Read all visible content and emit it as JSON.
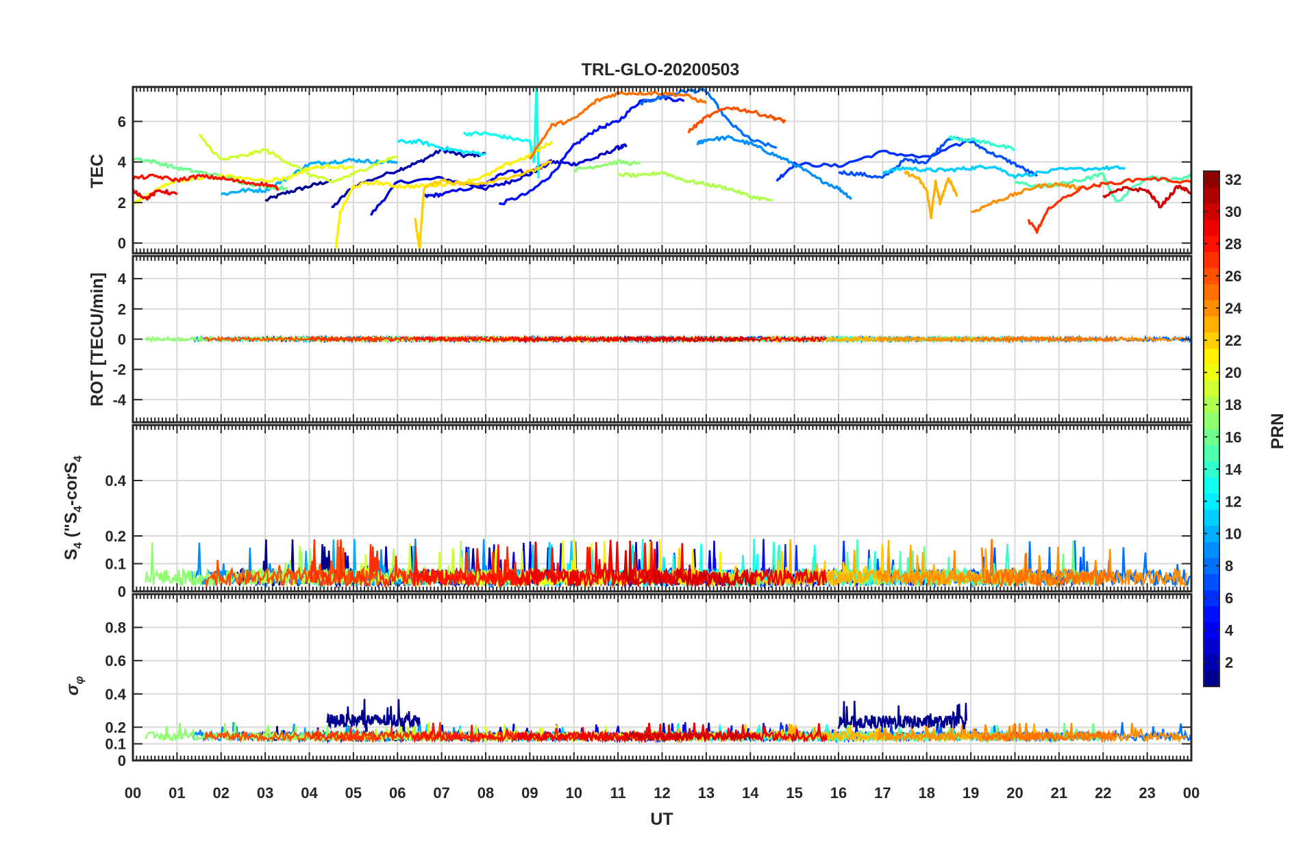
{
  "chart_data": {
    "type": "line",
    "title": "TRL-GLO-20200503",
    "xlabel": "UT",
    "x_tick_labels": [
      "00",
      "01",
      "02",
      "03",
      "04",
      "05",
      "06",
      "07",
      "08",
      "09",
      "10",
      "11",
      "12",
      "13",
      "14",
      "15",
      "16",
      "17",
      "18",
      "19",
      "20",
      "21",
      "22",
      "23",
      "00"
    ],
    "xlim": [
      0,
      24
    ],
    "panels": [
      {
        "id": "tec",
        "ylabel": "TEC",
        "ylim": [
          -0.5,
          7.7
        ],
        "yticks": [
          0,
          2,
          4,
          6
        ],
        "ytick_labels": [
          "0",
          "2",
          "4",
          "6"
        ],
        "series": [
          {
            "prn": 1,
            "x": [
              3.0,
              3.5,
              4.0,
              4.5
            ],
            "y": [
              2.1,
              2.5,
              2.8,
              3.1
            ]
          },
          {
            "prn": 2,
            "x": [
              4.5,
              5.0,
              6.0,
              6.5,
              7.0,
              7.5,
              8.0
            ],
            "y": [
              1.7,
              2.8,
              3.6,
              4.0,
              4.6,
              4.3,
              4.4
            ]
          },
          {
            "prn": 3,
            "x": [
              5.4,
              6.0,
              7.0,
              8.0,
              8.5,
              9.0,
              9.5,
              10.0,
              10.5,
              11.0,
              11.2
            ],
            "y": [
              1.4,
              3.0,
              3.2,
              2.7,
              3.0,
              3.4,
              4.0,
              3.9,
              4.2,
              4.7,
              4.8
            ]
          },
          {
            "prn": 4,
            "x": [
              6.6,
              7.0,
              8.0,
              8.5,
              9.0,
              9.5
            ],
            "y": [
              2.3,
              2.4,
              2.9,
              3.6,
              3.5,
              4.1
            ]
          },
          {
            "prn": 5,
            "x": [
              8.3,
              9.0,
              9.5,
              10.0,
              10.5,
              11.0,
              11.5,
              12.0,
              12.5
            ],
            "y": [
              1.9,
              2.5,
              3.4,
              4.8,
              5.6,
              6.0,
              7.0,
              7.2,
              7.0
            ]
          },
          {
            "prn": 6,
            "x": [
              14.6,
              15.0,
              16.0,
              17.0,
              18.0,
              19.0
            ],
            "y": [
              3.1,
              3.9,
              3.8,
              4.5,
              4.2,
              5.1
            ]
          },
          {
            "prn": 7,
            "x": [
              16.0,
              16.5,
              17.0,
              17.5,
              18.0,
              18.5,
              19.0,
              19.5,
              20.0,
              20.5
            ],
            "y": [
              3.5,
              3.4,
              3.2,
              4.1,
              4.0,
              5.2,
              5.0,
              4.4,
              3.9,
              3.3
            ]
          },
          {
            "prn": 8,
            "x": [
              11.5,
              12.0,
              12.5,
              13.0,
              13.5,
              14.0,
              14.6
            ],
            "y": [
              6.9,
              7.2,
              7.5,
              7.5,
              6.0,
              5.1,
              4.7
            ]
          },
          {
            "prn": 9,
            "x": [
              12.8,
              13.0,
              13.5,
              14.0,
              14.5,
              15.0,
              15.5,
              16.0,
              16.3
            ],
            "y": [
              4.9,
              5.1,
              5.2,
              4.9,
              4.4,
              3.9,
              3.2,
              2.7,
              2.2
            ]
          },
          {
            "prn": 10,
            "x": [
              2.0,
              2.5,
              3.0,
              3.5,
              4.0,
              4.5,
              5.0,
              5.5,
              6.0
            ],
            "y": [
              2.4,
              2.6,
              2.6,
              3.2,
              3.9,
              4.0,
              4.1,
              4.0,
              4.0
            ]
          },
          {
            "prn": 11,
            "x": [
              17.0,
              17.5,
              18.0,
              18.5,
              19.0,
              19.5,
              20.0,
              21.0,
              22.0,
              22.5
            ],
            "y": [
              3.5,
              3.7,
              3.6,
              3.6,
              3.7,
              3.8,
              3.3,
              3.6,
              3.7,
              3.7
            ]
          },
          {
            "prn": 12,
            "x": [
              6.0,
              6.5,
              7.0,
              7.5,
              8.0
            ],
            "y": [
              5.0,
              5.0,
              4.7,
              4.5,
              4.4
            ]
          },
          {
            "prn": 13,
            "x": [
              7.5,
              8.0,
              8.5,
              9.0,
              9.1,
              9.15,
              9.2
            ],
            "y": [
              5.4,
              5.4,
              5.2,
              5.0,
              4.0,
              7.6,
              3.2
            ]
          },
          {
            "prn": 14,
            "x": [
              18.5,
              19.0,
              19.5,
              20.0
            ],
            "y": [
              5.2,
              5.1,
              4.9,
              4.6
            ]
          },
          {
            "prn": 15,
            "x": [
              20.0,
              20.5,
              21.0,
              21.5,
              22.0,
              22.3,
              23.0,
              23.5,
              24.0
            ],
            "y": [
              3.0,
              2.8,
              2.9,
              3.1,
              3.4,
              2.0,
              3.3,
              3.1,
              3.3
            ]
          },
          {
            "prn": 16,
            "x": [
              0.0,
              0.5,
              1.0,
              1.5,
              2.0,
              2.5,
              3.0,
              3.5
            ],
            "y": [
              4.2,
              4.0,
              3.7,
              3.5,
              3.3,
              3.0,
              2.8,
              2.7
            ]
          },
          {
            "prn": 17,
            "x": [
              10.0,
              10.5,
              11.0,
              11.5
            ],
            "y": [
              3.6,
              3.8,
              4.0,
              3.9
            ]
          },
          {
            "prn": 18,
            "x": [
              11.0,
              11.5,
              12.0,
              12.5,
              13.0,
              13.5,
              14.0,
              14.5
            ],
            "y": [
              3.4,
              3.3,
              3.5,
              3.1,
              2.9,
              2.7,
              2.3,
              2.1
            ]
          },
          {
            "prn": 19,
            "x": [
              1.5,
              2.0,
              2.5,
              3.0,
              3.5,
              4.0,
              4.5,
              5.0,
              5.5,
              6.0
            ],
            "y": [
              5.3,
              4.1,
              4.3,
              4.6,
              4.0,
              3.4,
              3.0,
              3.4,
              3.9,
              4.3
            ]
          },
          {
            "prn": 20,
            "x": [
              0.0,
              0.5,
              1.0,
              2.0,
              3.0,
              3.5,
              4.0,
              4.5,
              5.0
            ],
            "y": [
              1.9,
              2.6,
              3.1,
              3.3,
              3.1,
              3.2,
              3.7,
              3.8,
              3.7
            ]
          },
          {
            "prn": 21,
            "x": [
              4.6,
              4.7,
              5.0,
              5.5,
              6.0,
              6.5,
              7.0,
              7.5,
              8.0,
              8.5,
              9.0,
              9.5
            ],
            "y": [
              -0.3,
              1.5,
              2.8,
              3.0,
              2.8,
              2.8,
              2.9,
              3.0,
              3.3,
              3.9,
              4.3,
              5.0
            ]
          },
          {
            "prn": 22,
            "x": [
              6.4,
              6.5,
              6.6,
              7.0,
              7.5,
              8.0,
              9.0,
              9.5
            ],
            "y": [
              1.2,
              -0.3,
              2.7,
              3.1,
              2.9,
              3.0,
              3.5,
              4.0
            ]
          },
          {
            "prn": 23,
            "x": [
              17.5,
              17.8,
              18.0,
              18.1,
              18.2,
              18.3,
              18.5,
              18.7
            ],
            "y": [
              3.5,
              3.2,
              2.6,
              1.3,
              3.0,
              2.0,
              3.2,
              2.3
            ]
          },
          {
            "prn": 24,
            "x": [
              19.0,
              19.5,
              20.0,
              20.5,
              21.0,
              21.5
            ],
            "y": [
              1.5,
              2.0,
              2.4,
              2.8,
              2.9,
              2.7
            ]
          },
          {
            "prn": 25,
            "x": [
              9.0,
              9.5,
              10.0,
              10.5,
              11.0,
              11.5,
              12.0,
              12.5,
              13.0
            ],
            "y": [
              4.2,
              5.8,
              6.1,
              7.0,
              7.4,
              7.4,
              7.4,
              7.3,
              6.9
            ]
          },
          {
            "prn": 26,
            "x": [
              12.6,
              13.0,
              13.5,
              14.0,
              14.5,
              14.8
            ],
            "y": [
              5.5,
              6.2,
              6.7,
              6.5,
              6.2,
              6.0
            ]
          },
          {
            "prn": 27,
            "x": [
              20.3,
              20.5,
              20.8,
              21.5,
              22.0,
              23.0,
              24.0
            ],
            "y": [
              1.1,
              0.6,
              1.8,
              2.7,
              2.9,
              3.2,
              3.0
            ]
          },
          {
            "prn": 28,
            "x": [
              0.0,
              0.5,
              1.0,
              1.5,
              2.0,
              2.5,
              3.0,
              3.3
            ],
            "y": [
              3.2,
              3.3,
              3.1,
              3.3,
              3.2,
              3.0,
              2.9,
              2.7
            ]
          },
          {
            "prn": 29,
            "x": [
              0.0,
              0.3,
              0.6,
              1.0
            ],
            "y": [
              2.6,
              2.2,
              2.6,
              2.4
            ]
          },
          {
            "prn": 30,
            "x": [
              22.0,
              22.5,
              23.0,
              23.3,
              23.7,
              24.0
            ],
            "y": [
              2.3,
              2.7,
              2.6,
              1.8,
              2.8,
              2.5
            ]
          }
        ]
      },
      {
        "id": "rot",
        "ylabel": "ROT [TECU/min]",
        "ylim": [
          -5.5,
          5.5
        ],
        "yticks": [
          -4,
          -2,
          0,
          2,
          4
        ],
        "ytick_labels": [
          "-4",
          "-2",
          "0",
          "2",
          "4"
        ],
        "note": "All PRNs stay within about ±0.2 TECU/min around 0"
      },
      {
        "id": "s4",
        "ylabel": "S4 (\"S4-corS4\")",
        "ylabel_parts": {
          "main": "S",
          "sub": "4",
          "paren_open": " (\"S",
          "minus": "-corS",
          "paren_close": "\")"
        },
        "ylim": [
          0,
          0.6
        ],
        "yticks": [
          0,
          0.1,
          0.2,
          0.4
        ],
        "ytick_labels": [
          "0",
          "0.1",
          "0.2",
          "0.4"
        ],
        "note": "Background 0.02-0.10 with spikes up to ~0.2"
      },
      {
        "id": "sigma",
        "ylabel": "σφ",
        "ylabel_parts": {
          "main": "σ",
          "sub": "φ"
        },
        "ylim": [
          0,
          1.0
        ],
        "yticks": [
          0,
          0.1,
          0.2,
          0.4,
          0.6,
          0.8
        ],
        "ytick_labels": [
          "0",
          "0.1",
          "0.2",
          "0.4",
          "0.6",
          "0.8"
        ],
        "note": "Baseline ~0.15; PRN 1-2 elevated to 0.2-0.37 during 04:30-06:30 and 16:00-19:00 UT",
        "enhancements": [
          {
            "prn": 1,
            "start": 4.4,
            "end": 6.5,
            "level": 0.24,
            "peak": 0.37
          },
          {
            "prn": 1,
            "start": 16.0,
            "end": 18.9,
            "level": 0.23,
            "peak": 0.36
          }
        ]
      }
    ],
    "colorbar": {
      "label": "PRN",
      "colormap": "jet",
      "range": [
        1,
        32
      ],
      "ticks": [
        2,
        4,
        6,
        8,
        10,
        12,
        14,
        16,
        18,
        20,
        22,
        24,
        26,
        28,
        30,
        32
      ],
      "tick_labels": [
        "2",
        "4",
        "6",
        "8",
        "10",
        "12",
        "14",
        "16",
        "18",
        "20",
        "22",
        "24",
        "26",
        "28",
        "30",
        "32"
      ]
    }
  }
}
